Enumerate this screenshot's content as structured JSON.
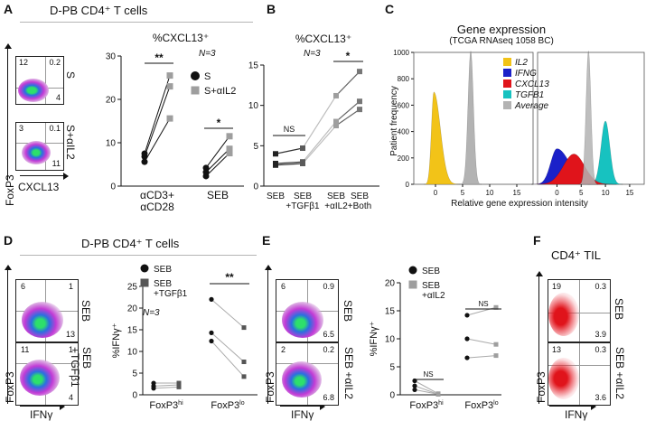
{
  "panels": {
    "A": {
      "letter": "A",
      "header": "D-PB CD4⁺ T cells",
      "flow": {
        "y_axis": "FoxP3",
        "x_axis": "CXCL13",
        "plots": [
          {
            "condition": "S",
            "q_tl": "12",
            "q_tr": "0.2",
            "q_br": "4"
          },
          {
            "condition": "S+αIL2",
            "q_tl": "3",
            "q_tr": "0.1",
            "q_br": "11"
          }
        ]
      }
    },
    "B": {
      "letter": "B"
    },
    "C": {
      "letter": "C",
      "title": "Gene expression",
      "subtitle": "(TCGA RNAseq 1058 BC)"
    },
    "D": {
      "letter": "D",
      "header": "D-PB CD4⁺ T cells",
      "flow": {
        "y_axis": "FoxP3",
        "x_axis": "IFNγ",
        "plots": [
          {
            "condition": "SEB",
            "q_tl": "6",
            "q_tr": "1",
            "q_br": "13"
          },
          {
            "condition": "SEB +TGFβ1",
            "q_tl": "11",
            "q_tr": "1",
            "q_br": "4"
          }
        ]
      }
    },
    "E": {
      "letter": "E",
      "flow": {
        "y_axis": "FoxP3",
        "x_axis": "IFNγ",
        "plots": [
          {
            "condition": "SEB",
            "q_tl": "6",
            "q_tr": "0.9",
            "q_br": "6.5"
          },
          {
            "condition": "SEB +αIL2",
            "q_tl": "2",
            "q_tr": "0.2",
            "q_br": "6.8"
          }
        ]
      }
    },
    "F": {
      "letter": "F",
      "header": "CD4⁺ TIL",
      "flow": {
        "y_axis": "FoxP3",
        "x_axis": "IFNγ",
        "plots": [
          {
            "condition": "SEB",
            "q_tl": "19",
            "q_tr": "0.3",
            "q_br": "3.9"
          },
          {
            "condition": "SEB +αIL2",
            "q_tl": "13",
            "q_tr": "0.3",
            "q_br": "3.6"
          }
        ]
      }
    }
  },
  "colors": {
    "dark_series": "#111111",
    "gray_series": "#9e9e9e",
    "mid_series": "#555555",
    "IL2": "#f2c318",
    "IFNG": "#1b21c9",
    "CXCL13": "#e0141b",
    "TGFB1": "#17c2c0",
    "Average": "#b3b3b3"
  },
  "chart_data": [
    {
      "id": "A",
      "type": "line",
      "title": "%CXCL13⁺",
      "annotation": "N=3",
      "ylim": [
        0,
        30
      ],
      "yticks": [
        0,
        10,
        20,
        30
      ],
      "groups": [
        "αCD3+\nαCD28",
        "SEB"
      ],
      "legend": [
        "S",
        "S+αIL2"
      ],
      "pairs": [
        {
          "group": 0,
          "S": 7.5,
          "S+αIL2": 25.5
        },
        {
          "group": 0,
          "S": 6.8,
          "S+αIL2": 23.0
        },
        {
          "group": 0,
          "S": 5.6,
          "S+αIL2": 15.6
        },
        {
          "group": 1,
          "S": 4.2,
          "S+αIL2": 11.5
        },
        {
          "group": 1,
          "S": 3.2,
          "S+αIL2": 8.6
        },
        {
          "group": 1,
          "S": 2.3,
          "S+αIL2": 7.6
        }
      ],
      "significance": [
        {
          "group": 0,
          "label": "**"
        },
        {
          "group": 1,
          "label": "*"
        }
      ]
    },
    {
      "id": "B",
      "type": "line",
      "title": "%CXCL13⁺",
      "annotation": "N=3",
      "ylim": [
        0,
        15
      ],
      "yticks": [
        0,
        5,
        10,
        15
      ],
      "categories": [
        "SEB",
        "SEB\n+TGFβ1",
        "SEB\n+αIL2",
        "SEB\n+Both"
      ],
      "series": [
        {
          "values": [
            4.0,
            4.7,
            11.2,
            14.2
          ]
        },
        {
          "values": [
            2.8,
            3.0,
            8.0,
            10.5
          ]
        },
        {
          "values": [
            2.6,
            2.8,
            7.5,
            9.5
          ]
        }
      ],
      "significance": [
        {
          "from": 0,
          "to": 1,
          "label": "NS"
        },
        {
          "from": 2,
          "to": 3,
          "label": "*"
        }
      ]
    },
    {
      "id": "C",
      "type": "area",
      "xlabel": "Relative gene expression intensity",
      "ylabel": "Patient frequency",
      "ylim": [
        0,
        1000
      ],
      "yticks": [
        0,
        200,
        400,
        600,
        800,
        1000
      ],
      "xticks": [
        0,
        5,
        10,
        15
      ],
      "legend": [
        "IL2",
        "IFNG",
        "CXCL13",
        "TGFB1",
        "Average"
      ],
      "left_panel": {
        "IL2": {
          "peak_x": -0.3,
          "peak_y": 700
        },
        "Average": {
          "peak_x": 6.5,
          "peak_y": 1010
        }
      },
      "right_panel": {
        "IFNG": {
          "peak_x": 0.0,
          "peak_y": 270
        },
        "CXCL13": {
          "peak_x": 3.5,
          "peak_y": 230
        },
        "TGFB1": {
          "peak_x": 10.0,
          "peak_y": 480
        },
        "Average": {
          "peak_x": 6.5,
          "peak_y": 1010
        }
      }
    },
    {
      "id": "D",
      "type": "line",
      "ylabel": "%IFNγ⁺",
      "annotation": "N=3",
      "ylim": [
        0,
        25
      ],
      "yticks": [
        0,
        5,
        10,
        15,
        20,
        25
      ],
      "groups": [
        "FoxP3hi",
        "FoxP3lo"
      ],
      "legend": [
        "SEB",
        "SEB\n+TGFβ1"
      ],
      "pairs": [
        {
          "group": 0,
          "SEB": 2.7,
          "SEB+TGFβ1": 2.7
        },
        {
          "group": 0,
          "SEB": 2.0,
          "SEB+TGFβ1": 2.3
        },
        {
          "group": 0,
          "SEB": 1.5,
          "SEB+TGFβ1": 1.8
        },
        {
          "group": 1,
          "SEB": 22.0,
          "SEB+TGFβ1": 15.5
        },
        {
          "group": 1,
          "SEB": 14.3,
          "SEB+TGFβ1": 7.6
        },
        {
          "group": 1,
          "SEB": 12.4,
          "SEB+TGFβ1": 4.2
        }
      ],
      "significance": [
        {
          "group": 1,
          "label": "**"
        }
      ]
    },
    {
      "id": "E",
      "type": "line",
      "ylabel": "%IFNγ⁺",
      "ylim": [
        0,
        20
      ],
      "yticks": [
        0,
        5,
        10,
        15,
        20
      ],
      "groups": [
        "FoxP3hi",
        "FoxP3lo"
      ],
      "legend": [
        "SEB",
        "SEB\n+αIL2"
      ],
      "pairs": [
        {
          "group": 0,
          "SEB": 2.5,
          "SEB+αIL2": 0.2
        },
        {
          "group": 0,
          "SEB": 1.6,
          "SEB+αIL2": 0.1
        },
        {
          "group": 0,
          "SEB": 0.9,
          "SEB+αIL2": 0.1
        },
        {
          "group": 1,
          "SEB": 14.2,
          "SEB+αIL2": 15.6
        },
        {
          "group": 1,
          "SEB": 10.0,
          "SEB+αIL2": 9.0
        },
        {
          "group": 1,
          "SEB": 6.6,
          "SEB+αIL2": 7.0
        }
      ],
      "significance": [
        {
          "group": 0,
          "label": "NS"
        },
        {
          "group": 1,
          "label": "NS"
        }
      ]
    }
  ]
}
